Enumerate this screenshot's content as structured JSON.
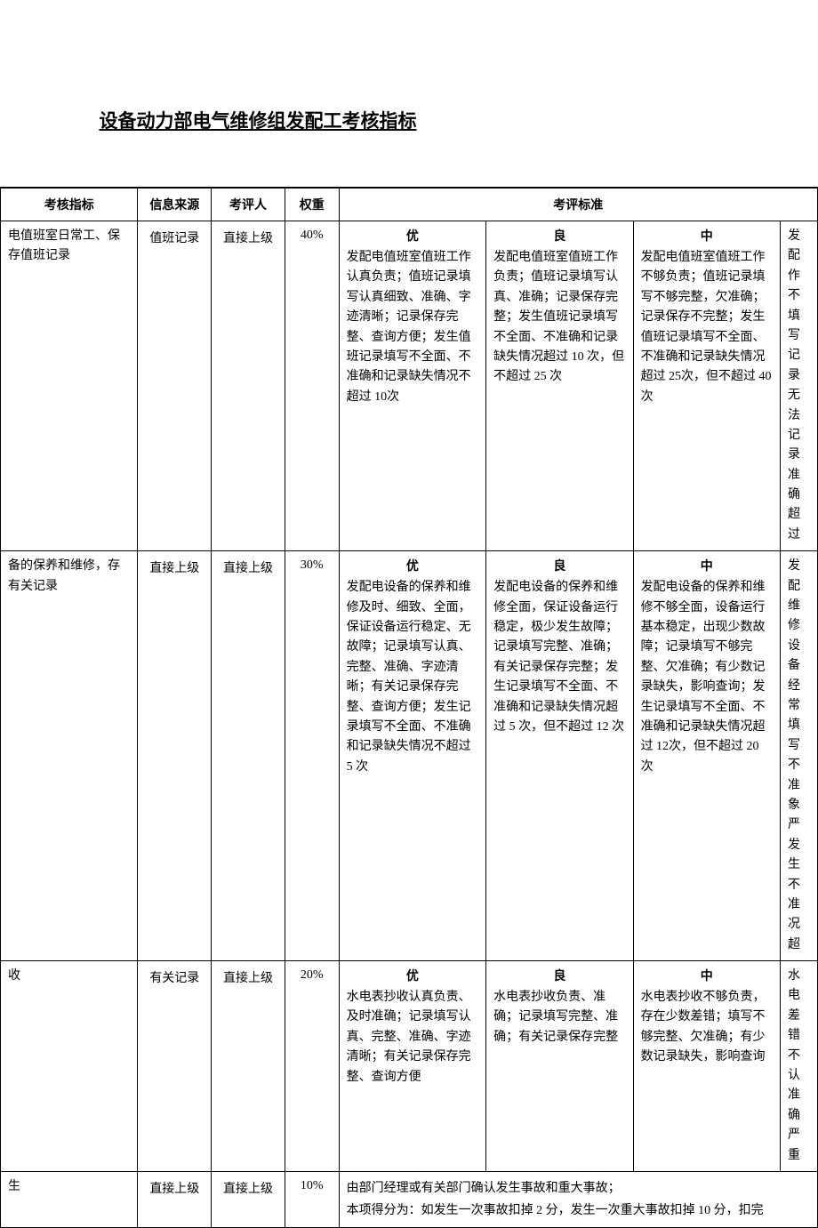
{
  "title": "设备动力部电气维修组发配工考核指标",
  "headers": {
    "indicator": "考核指标",
    "source": "信息来源",
    "evaluator": "考评人",
    "weight": "权重",
    "standard": "考评标准"
  },
  "grades": {
    "excellent": "优",
    "good": "良",
    "medium": "中"
  },
  "rows": [
    {
      "indicator": "电值班室日常工、保存值班记录",
      "source": "值班记录",
      "evaluator": "直接上级",
      "weight": "40%",
      "excellent": "发配电值班室值班工作认真负责；值班记录填写认真细致、准确、字迹清晰；记录保存完整、查询方便；发生值班记录填写不全面、不准确和记录缺失情况不超过 10次",
      "good": "发配电值班室值班工作负责；值班记录填写认真、准确；记录保存完整；发生值班记录填写不全面、不准确和记录缺失情况超过 10 次，但不超过 25 次",
      "medium": "发配电值班室值班工作不够负责；值班记录填写不够完整，欠准确；记录保存不完整；发生值班记录填写不全面、不准确和记录缺失情况超过 25次，但不超过 40 次",
      "last": "发配\n作不\n填写\n记录\n无法\n记录\n准确\n超过"
    },
    {
      "indicator": "备的保养和维修，存有关记录",
      "source": "直接上级",
      "evaluator": "直接上级",
      "weight": "30%",
      "excellent": "发配电设备的保养和维修及时、细致、全面，保证设备运行稳定、无故障；记录填写认真、完整、准确、字迹清晰；有关记录保存完整、查询方便；发生记录填写不全面、不准确和记录缺失情况不超过 5 次",
      "good": "发配电设备的保养和维修全面，保证设备运行稳定，极少发生故障；记录填写完整、准确；有关记录保存完整；发生记录填写不全面、不准确和记录缺失情况超过 5 次，但不超过 12 次",
      "medium": "发配电设备的保养和维修不够全面，设备运行基本稳定，出现少数故障；记录填写不够完整、欠准确；有少数记录缺失，影响查询；发生记录填写不全面、不准确和记录缺失情况超过 12次，但不超过 20 次",
      "last": "发配\n维修\n设备\n经常\n填写\n不准\n象严\n发生\n不准\n况超"
    },
    {
      "indicator": "收",
      "source": "有关记录",
      "evaluator": "直接上级",
      "weight": "20%",
      "excellent": "水电表抄收认真负责、及时准确；记录填写认真、完整、准确、字迹清晰；有关记录保存完整、查询方便",
      "good": "水电表抄收负责、准确；记录填写完整、准确；有关记录保存完整",
      "medium": "水电表抄收不够负责，存在少数差错；填写不够完整、欠准确；有少数记录缺失，影响查询",
      "last": "水电\n差错\n不认\n准确\n严重"
    },
    {
      "indicator": "生",
      "source": "直接上级",
      "evaluator": "直接上级",
      "weight": "10%",
      "merged": "由部门经理或有关部门确认发生事故和重大事故；\n本项得分为：如发生一次事故扣掉 2 分，发生一次重大事故扣掉 10 分，扣完"
    }
  ]
}
